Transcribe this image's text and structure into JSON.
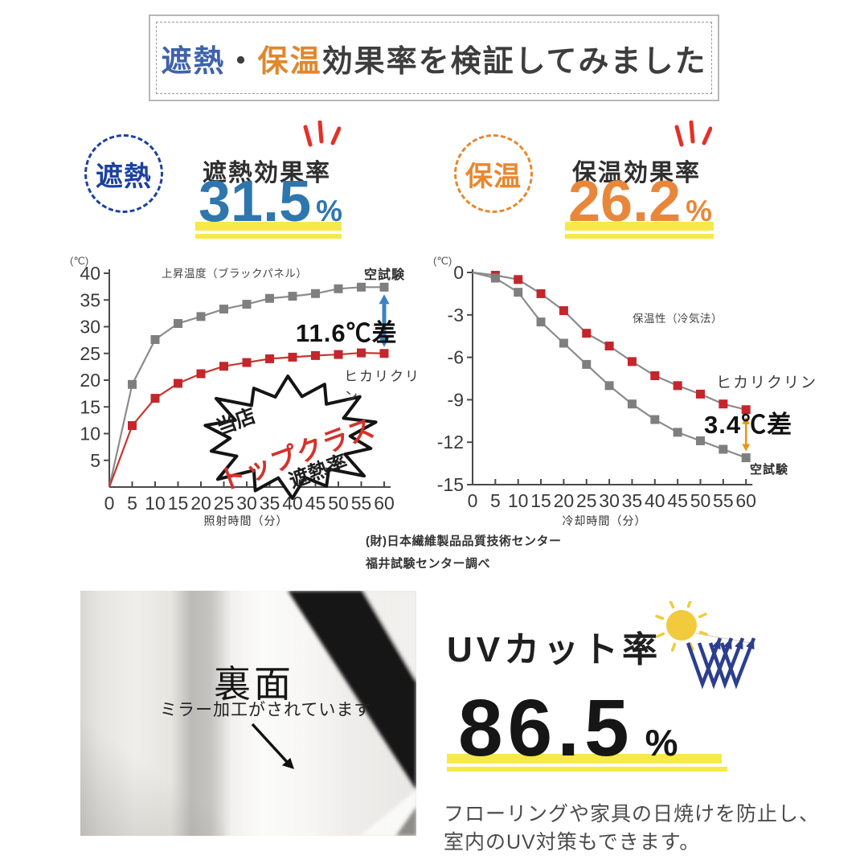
{
  "title_box": {
    "word_shading": "遮熱",
    "dot": "・",
    "word_warmth": "保温",
    "rest": "効果率を検証してみました"
  },
  "metrics": {
    "shading": {
      "badge": "遮熱",
      "heading": "遮熱効果率",
      "value": "31.5",
      "unit": "%",
      "color": "#2e76ae"
    },
    "warmth": {
      "badge": "保温",
      "heading": "保温効果率",
      "value": "26.2",
      "unit": "%",
      "color": "#e8873b"
    }
  },
  "chart_data": [
    {
      "type": "line",
      "title": "上昇温度（ブラックパネル）",
      "unit_label": "(℃)",
      "xlabel": "照射時間（分）",
      "x": [
        0,
        5,
        10,
        15,
        20,
        25,
        30,
        35,
        40,
        45,
        50,
        55,
        60
      ],
      "ylim": [
        0,
        40
      ],
      "yticks": [
        40,
        35,
        30,
        25,
        20,
        15,
        10,
        5
      ],
      "series": [
        {
          "name": "空試験",
          "line_color": "#8b8b8b",
          "marker_color": "#7f7f7f",
          "values": [
            0,
            19.2,
            27.6,
            30.6,
            31.9,
            33.3,
            34.2,
            35.3,
            35.7,
            36.2,
            37.1,
            37.4,
            37.4
          ]
        },
        {
          "name": "ヒカリクリン",
          "line_color": "#c9352f",
          "marker_color": "#c4262b",
          "values": [
            0,
            11.5,
            16.6,
            19.4,
            21.2,
            22.6,
            23.3,
            24.0,
            24.3,
            24.6,
            24.8,
            25.1,
            25.0
          ]
        }
      ],
      "annotation": {
        "text": "11.6℃差",
        "arrow_color": "#3e82c4"
      },
      "badge": {
        "line1": "当店",
        "line2": "トップクラス",
        "line3": "遮熱率",
        "accent_color": "#d4322b"
      }
    },
    {
      "type": "line",
      "title": "保温性（冷気法）",
      "unit_label": "(℃)",
      "xlabel": "冷却時間（分）",
      "x": [
        0,
        5,
        10,
        15,
        20,
        25,
        30,
        35,
        40,
        45,
        50,
        55,
        60
      ],
      "ylim": [
        -15,
        0
      ],
      "yticks": [
        0,
        -3,
        -6,
        -9,
        -12,
        -15
      ],
      "series": [
        {
          "name": "ヒカリクリン",
          "line_color": "#8b8b8b",
          "marker_color": "#c4262b",
          "values": [
            0,
            -0.2,
            -0.5,
            -1.5,
            -2.7,
            -4.3,
            -5.2,
            -6.3,
            -7.3,
            -8.0,
            -8.6,
            -9.3,
            -9.7
          ]
        },
        {
          "name": "空試験",
          "line_color": "#8b8b8b",
          "marker_color": "#7f7f7f",
          "values": [
            0,
            -0.4,
            -1.4,
            -3.5,
            -5.0,
            -6.5,
            -8.0,
            -9.3,
            -10.4,
            -11.3,
            -11.9,
            -12.5,
            -13.1
          ]
        }
      ],
      "annotation": {
        "text": "3.4℃差",
        "arrow_color": "#e8950f"
      }
    }
  ],
  "source": {
    "line1": "(財)日本繊維製品品質技術センター",
    "line2": "福井試験センター調べ"
  },
  "photo": {
    "label": "裏面",
    "caption": "ミラー加工がされています"
  },
  "uv": {
    "heading": "UVカット率",
    "value": "86.5",
    "unit": "%",
    "desc1": "フローリングや家具の日焼けを防止し、",
    "desc2": "室内のUV対策もできます。"
  },
  "colors": {
    "highlight_yellow": "#f7e84b",
    "badge_blue": "#1c419c",
    "badge_orange": "#e8872e",
    "emphasis_red": "#e23128",
    "uv_arrow_navy": "#2c3e8e",
    "sun_yellow": "#f1ca3d"
  }
}
